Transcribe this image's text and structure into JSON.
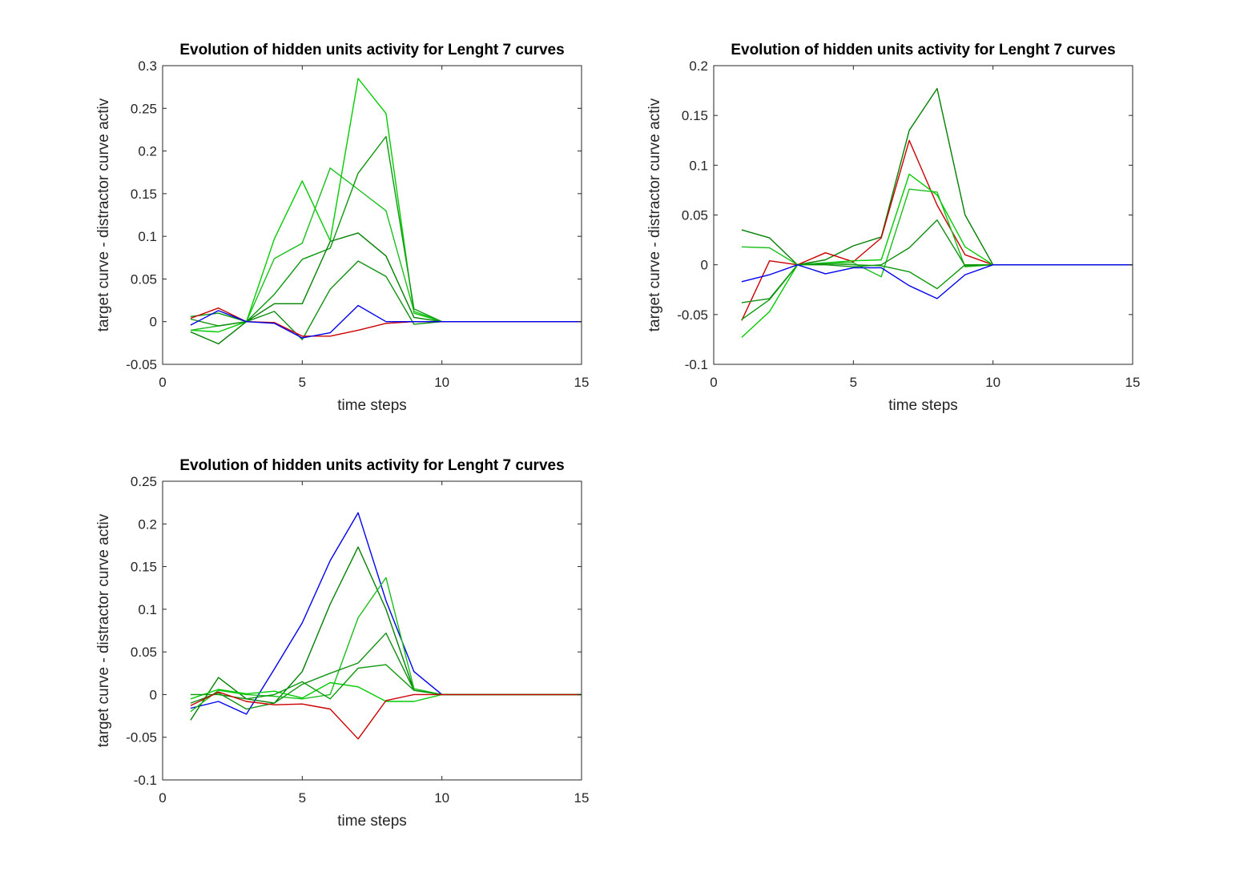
{
  "chart_data": [
    {
      "type": "line",
      "title": "Evolution of hidden units activity for Lenght 7 curves",
      "xlabel": "time steps",
      "ylabel": "target curve - distractor curve activ",
      "xlim": [
        0,
        15
      ],
      "ylim": [
        -0.05,
        0.3
      ],
      "xticks": [
        "0",
        "5",
        "10",
        "15"
      ],
      "yticks": [
        "-0.05",
        "0",
        "0.05",
        "0.1",
        "0.15",
        "0.2",
        "0.25",
        "0.3"
      ],
      "xtick_values": [
        0,
        5,
        10,
        15
      ],
      "ytick_values": [
        -0.05,
        0,
        0.05,
        0.1,
        0.15,
        0.2,
        0.25,
        0.3
      ],
      "grid": false,
      "x": [
        1,
        2,
        3,
        4,
        5,
        6,
        7,
        8,
        9,
        10,
        11,
        12,
        13,
        14,
        15
      ],
      "series": [
        {
          "color": "#00cc00",
          "values": [
            -0.01,
            -0.012,
            0,
            0.097,
            0.165,
            0.095,
            0.285,
            0.244,
            0.01,
            0,
            0,
            0,
            0,
            0,
            0
          ]
        },
        {
          "color": "#1bbf1b",
          "values": [
            -0.01,
            -0.005,
            0,
            0.074,
            0.092,
            0.18,
            0.155,
            0.13,
            0.012,
            0,
            0,
            0,
            0,
            0,
            0
          ]
        },
        {
          "color": "#0a990a",
          "values": [
            0.006,
            0.01,
            0,
            0.032,
            0.073,
            0.086,
            0.174,
            0.217,
            0.015,
            0,
            0,
            0,
            0,
            0,
            0
          ]
        },
        {
          "color": "#008000",
          "values": [
            -0.012,
            -0.026,
            0,
            0.021,
            0.021,
            0.094,
            0.104,
            0.077,
            0.005,
            0,
            0,
            0,
            0,
            0,
            0
          ]
        },
        {
          "color": "#109010",
          "values": [
            0.003,
            -0.005,
            0,
            0.012,
            -0.021,
            0.038,
            0.071,
            0.053,
            -0.003,
            0,
            0,
            0,
            0,
            0,
            0
          ]
        },
        {
          "color": "#cc0000",
          "values": [
            0.004,
            0.016,
            0,
            -0.001,
            -0.017,
            -0.017,
            -0.01,
            -0.002,
            0,
            0,
            0,
            0,
            0,
            0,
            0
          ]
        },
        {
          "color": "#0000ee",
          "values": [
            -0.004,
            0.013,
            0,
            -0.002,
            -0.019,
            -0.013,
            0.019,
            0.0,
            0,
            0,
            0,
            0,
            0,
            0,
            0
          ]
        }
      ]
    },
    {
      "type": "line",
      "title": "Evolution of hidden units activity for Lenght 7 curves",
      "xlabel": "time steps",
      "ylabel": "target curve - distractor curve activ",
      "xlim": [
        0,
        15
      ],
      "ylim": [
        -0.1,
        0.2
      ],
      "xticks": [
        "0",
        "5",
        "10",
        "15"
      ],
      "yticks": [
        "-0.1",
        "-0.05",
        "0",
        "0.05",
        "0.1",
        "0.15",
        "0.2"
      ],
      "xtick_values": [
        0,
        5,
        10,
        15
      ],
      "ytick_values": [
        -0.1,
        -0.05,
        0,
        0.05,
        0.1,
        0.15,
        0.2
      ],
      "grid": false,
      "x": [
        1,
        2,
        3,
        4,
        5,
        6,
        7,
        8,
        9,
        10,
        11,
        12,
        13,
        14,
        15
      ],
      "series": [
        {
          "color": "#008000",
          "values": [
            0.035,
            0.027,
            0,
            0.005,
            0.019,
            0.028,
            0.135,
            0.177,
            0.05,
            0,
            0,
            0,
            0,
            0,
            0
          ]
        },
        {
          "color": "#cc0000",
          "values": [
            -0.056,
            0.004,
            0,
            0.012,
            0.003,
            0.027,
            0.125,
            0.06,
            0.01,
            0,
            0,
            0,
            0,
            0,
            0
          ]
        },
        {
          "color": "#00cc00",
          "values": [
            -0.073,
            -0.047,
            0,
            0.002,
            0.004,
            0.005,
            0.091,
            0.07,
            0.018,
            0,
            0,
            0,
            0,
            0,
            0
          ]
        },
        {
          "color": "#1bbf1b",
          "values": [
            0.018,
            0.017,
            0,
            0.002,
            0.002,
            -0.012,
            0.076,
            0.073,
            -0.002,
            0,
            0,
            0,
            0,
            0,
            0
          ]
        },
        {
          "color": "#109010",
          "values": [
            -0.038,
            -0.034,
            0,
            0.0,
            -0.002,
            0.0,
            0.017,
            0.045,
            -0.001,
            0,
            0,
            0,
            0,
            0,
            0
          ]
        },
        {
          "color": "#0a990a",
          "values": [
            -0.055,
            -0.035,
            0,
            0.001,
            0.0,
            -0.001,
            -0.007,
            -0.024,
            0,
            0,
            0,
            0,
            0,
            0,
            0
          ]
        },
        {
          "color": "#0000ee",
          "values": [
            -0.017,
            -0.01,
            0,
            -0.009,
            -0.003,
            -0.003,
            -0.021,
            -0.034,
            -0.01,
            0,
            0,
            0,
            0,
            0,
            0
          ]
        }
      ]
    },
    {
      "type": "line",
      "title": "Evolution of hidden units activity for Lenght 7 curves",
      "xlabel": "time steps",
      "ylabel": "target curve - distractor curve activ",
      "xlim": [
        0,
        15
      ],
      "ylim": [
        -0.1,
        0.25
      ],
      "xticks": [
        "0",
        "5",
        "10",
        "15"
      ],
      "yticks": [
        "-0.1",
        "-0.05",
        "0",
        "0.05",
        "0.1",
        "0.15",
        "0.2",
        "0.25"
      ],
      "xtick_values": [
        0,
        5,
        10,
        15
      ],
      "ytick_values": [
        -0.1,
        -0.05,
        0,
        0.05,
        0.1,
        0.15,
        0.2,
        0.25
      ],
      "grid": false,
      "x": [
        1,
        2,
        3,
        4,
        5,
        6,
        7,
        8,
        9,
        10,
        11,
        12,
        13,
        14,
        15
      ],
      "series": [
        {
          "color": "#0000ee",
          "values": [
            -0.016,
            -0.008,
            -0.023,
            0.03,
            0.084,
            0.157,
            0.213,
            0.11,
            0.027,
            0,
            0,
            0,
            0,
            0,
            0
          ]
        },
        {
          "color": "#008000",
          "values": [
            -0.03,
            0.02,
            -0.005,
            -0.01,
            0.027,
            0.106,
            0.173,
            0.1,
            0.005,
            0,
            0,
            0,
            0,
            0,
            0
          ]
        },
        {
          "color": "#1bbf1b",
          "values": [
            -0.02,
            0.005,
            0.0,
            -0.002,
            -0.005,
            0.0,
            0.09,
            0.137,
            0.007,
            0,
            0,
            0,
            0,
            0,
            0
          ]
        },
        {
          "color": "#109010",
          "values": [
            -0.01,
            0.002,
            -0.017,
            -0.01,
            0.012,
            0.025,
            0.037,
            0.072,
            0.005,
            0,
            0,
            0,
            0,
            0,
            0
          ]
        },
        {
          "color": "#00cc00",
          "values": [
            -0.005,
            0.006,
            0.001,
            0.004,
            -0.004,
            0.014,
            0.009,
            -0.008,
            -0.008,
            0,
            0,
            0,
            0,
            0,
            0
          ]
        },
        {
          "color": "#0a990a",
          "values": [
            0.0,
            0.0,
            -0.005,
            0.0,
            0.015,
            -0.005,
            0.031,
            0.035,
            0.005,
            0,
            0,
            0,
            0,
            0,
            0
          ]
        },
        {
          "color": "#cc0000",
          "values": [
            -0.013,
            0.003,
            -0.008,
            -0.012,
            -0.011,
            -0.017,
            -0.052,
            -0.007,
            0,
            0,
            0,
            0,
            0,
            0,
            0
          ]
        }
      ]
    }
  ]
}
